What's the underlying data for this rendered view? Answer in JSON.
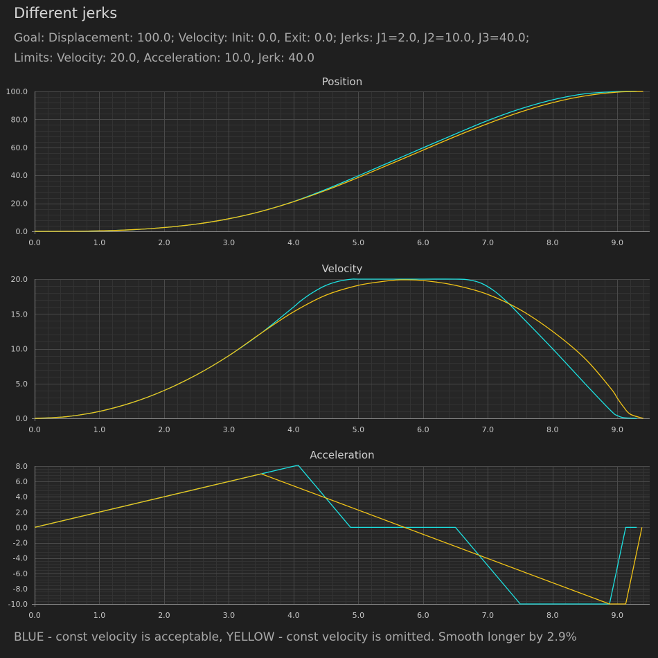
{
  "header": {
    "title": "Different jerks",
    "goal": "Goal: Displacement: 100.0; Velocity: Init: 0.0, Exit: 0.0; Jerks: J1=2.0, J2=10.0, J3=40.0;",
    "limits": "Limits: Velocity: 20.0, Acceleration: 10.0, Jerk: 40.0"
  },
  "footer": "BLUE - const velocity is acceptable, YELLOW - const velocity is omitted. Smooth longer by 2.9%",
  "colors": {
    "background": "#1f1f1f",
    "plot_background": "#262626",
    "grid_major": "#4a4a4a",
    "grid_minor": "#333333",
    "axis_text": "#c8c8c8",
    "blue_series": "#1de2e2",
    "yellow_series": "#f2c417"
  },
  "chart_data": [
    {
      "type": "line",
      "title": "Position",
      "xlim": [
        0,
        9.5
      ],
      "ylim": [
        0,
        100
      ],
      "xticks": [
        "0.0",
        "1.0",
        "2.0",
        "3.0",
        "4.0",
        "5.0",
        "6.0",
        "7.0",
        "8.0",
        "9.0"
      ],
      "yticks": [
        "0.0",
        "20.0",
        "40.0",
        "60.0",
        "80.0",
        "100.0"
      ],
      "grid": true,
      "series": [
        {
          "color": "#1de2e2",
          "x": [
            0,
            0.5,
            1,
            1.5,
            2,
            2.5,
            3,
            3.5,
            4,
            4.5,
            5,
            5.5,
            6,
            6.5,
            7,
            7.5,
            8,
            8.5,
            9,
            9.3
          ],
          "y": [
            0,
            0.04,
            0.33,
            1.13,
            2.7,
            5.2,
            9,
            14.3,
            21.3,
            30,
            39.7,
            49.7,
            59.7,
            69.6,
            79.2,
            87.5,
            94,
            98.3,
            99.9,
            100
          ]
        },
        {
          "color": "#f2c417",
          "x": [
            0,
            0.5,
            1,
            1.5,
            2,
            2.5,
            3,
            3.5,
            4,
            4.5,
            5,
            5.5,
            6,
            6.5,
            7,
            7.5,
            8,
            8.5,
            9,
            9.4
          ],
          "y": [
            0,
            0.04,
            0.33,
            1.13,
            2.7,
            5.2,
            9,
            14.3,
            21.2,
            29.3,
            38.5,
            48.2,
            58,
            67.8,
            77,
            85.2,
            92,
            96.8,
            99.5,
            100
          ]
        }
      ]
    },
    {
      "type": "line",
      "title": "Velocity",
      "xlim": [
        0,
        9.5
      ],
      "ylim": [
        0,
        20
      ],
      "xticks": [
        "0.0",
        "1.0",
        "2.0",
        "3.0",
        "4.0",
        "5.0",
        "6.0",
        "7.0",
        "8.0",
        "9.0"
      ],
      "yticks": [
        "0.0",
        "5.0",
        "10.0",
        "15.0",
        "20.0"
      ],
      "grid": true,
      "series": [
        {
          "color": "#1de2e2",
          "x": [
            0,
            0.5,
            1,
            1.5,
            2,
            2.5,
            3,
            3.5,
            4,
            4.1,
            4.3,
            4.5,
            4.7,
            4.9,
            5,
            5.5,
            6,
            6.5,
            6.7,
            6.9,
            7.1,
            7.3,
            7.5,
            8,
            8.5,
            8.9,
            9.0,
            9.1,
            9.3
          ],
          "y": [
            0,
            0.25,
            1,
            2.25,
            4,
            6.25,
            9,
            12.25,
            16,
            16.8,
            18.1,
            19.1,
            19.7,
            20,
            20,
            20,
            20,
            20,
            19.9,
            19.4,
            18.3,
            16.7,
            14.8,
            10,
            5,
            1.1,
            0.4,
            0.1,
            0
          ]
        },
        {
          "color": "#f2c417",
          "x": [
            0,
            0.5,
            1,
            1.5,
            2,
            2.5,
            3,
            3.5,
            4,
            4.5,
            5,
            5.5,
            5.7,
            6,
            6.5,
            7,
            7.5,
            8,
            8.5,
            8.9,
            9.0,
            9.1,
            9.2,
            9.4
          ],
          "y": [
            0,
            0.25,
            1,
            2.25,
            4,
            6.25,
            9,
            12.25,
            15.3,
            17.7,
            19.1,
            19.8,
            19.9,
            19.8,
            19.1,
            17.8,
            15.6,
            12.5,
            8.6,
            4.3,
            2.9,
            1.6,
            0.6,
            0
          ]
        }
      ]
    },
    {
      "type": "line",
      "title": "Acceleration",
      "xlim": [
        0,
        9.5
      ],
      "ylim": [
        -10,
        8
      ],
      "xticks": [
        "0.0",
        "1.0",
        "2.0",
        "3.0",
        "4.0",
        "5.0",
        "6.0",
        "7.0",
        "8.0",
        "9.0"
      ],
      "yticks": [
        "8.0",
        "6.0",
        "4.0",
        "2.0",
        "0.0",
        "-2.0",
        "-4.0",
        "-6.0",
        "-8.0",
        "-10.0"
      ],
      "grid": true,
      "series": [
        {
          "color": "#1de2e2",
          "x": [
            0,
            3.5,
            4.07,
            4.88,
            6.5,
            7.5,
            8.88,
            9.13,
            9.3
          ],
          "y": [
            0,
            7,
            8.13,
            0,
            0,
            -10,
            -10,
            0,
            0
          ]
        },
        {
          "color": "#f2c417",
          "x": [
            0,
            3.5,
            8.88,
            9.13,
            9.38
          ],
          "y": [
            0,
            7,
            -10,
            -10,
            0
          ]
        }
      ]
    }
  ]
}
